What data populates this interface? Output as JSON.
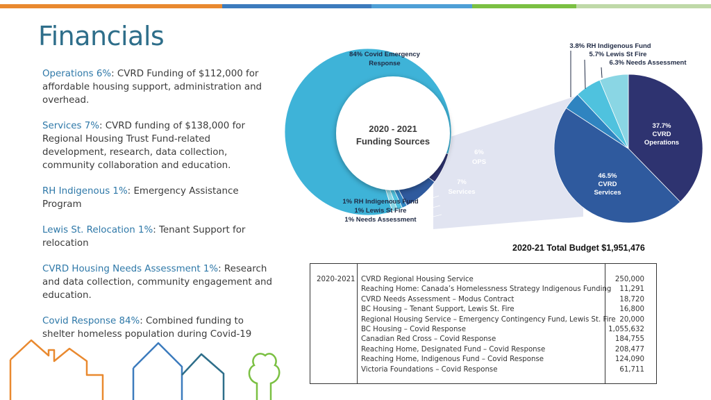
{
  "page": {
    "title": "Financials"
  },
  "descriptions": [
    {
      "label": "Operations 6%",
      "text": ":  CVRD Funding of $112,000 for affordable housing support, administration and overhead."
    },
    {
      "label": "Services 7%",
      "text": ":  CVRD funding of $138,000 for Regional Housing Trust Fund-related development, research, data collection, community collaboration and education."
    },
    {
      "label": "RH Indigenous 1%",
      "text": ":  Emergency Assistance Program"
    },
    {
      "label": "Lewis St. Relocation 1%",
      "text": ":  Tenant Support for relocation"
    },
    {
      "label": "CVRD Housing Needs Assessment 1%",
      "text": ": Research and data collection, community engagement and education."
    },
    {
      "label": "Covid Response 84%",
      "text": ":   Combined funding to shelter homeless population during Covid-19"
    }
  ],
  "colors": {
    "title": "#2e6e8a",
    "label": "#2e78a8",
    "covid": "#3eb3d8",
    "ops": "#2e3370",
    "services": "#2f5a9e",
    "small_a": "#2f84c0",
    "small_b": "#4fc2de",
    "small_c": "#8ad6e4",
    "bar_segments": [
      "#e9892f",
      "#3c7bbd",
      "#4e9fd6",
      "#7bc043",
      "#bfd9a8"
    ]
  },
  "chart_data": [
    {
      "type": "pie",
      "title": "2020 - 2021 Funding Sources",
      "slices": [
        {
          "label": "84% Covid Emergency Response",
          "value": 84
        },
        {
          "label": "6% OPS",
          "value": 6
        },
        {
          "label": "7% Services",
          "value": 7
        },
        {
          "label": "1% RH Indigenous Fund",
          "value": 1
        },
        {
          "label": "1% Lewis St Fire",
          "value": 1
        },
        {
          "label": "1% Needs Assessment",
          "value": 1
        }
      ],
      "labels": {
        "covid": [
          "84% Covid Emergency",
          "Response"
        ],
        "ops": [
          "6%",
          "OPS"
        ],
        "services": [
          "7%",
          "Services"
        ],
        "small": [
          "1% RH Indigenous Fund",
          "1% Lewis St Fire",
          "1% Needs Assessment"
        ],
        "center": [
          "2020 - 2021",
          "Funding Sources"
        ]
      }
    },
    {
      "type": "pie",
      "title": "",
      "slices": [
        {
          "label": "37.7% CVRD Operations",
          "value": 37.7
        },
        {
          "label": "46.5% CVRD Services",
          "value": 46.5
        },
        {
          "label": "3.8% RH Indigenous Fund",
          "value": 3.8
        },
        {
          "label": "5.7% Lewis St Fire",
          "value": 5.7
        },
        {
          "label": "6.3% Needs Assessment",
          "value": 6.3
        }
      ],
      "labels": {
        "ops": [
          "37.7%",
          "CVRD",
          "Operations"
        ],
        "services": [
          "46.5%",
          "CVRD",
          "Services"
        ],
        "callouts": [
          "3.8% RH Indigenous Fund",
          "5.7% Lewis St Fire",
          "6.3% Needs Assessment"
        ]
      }
    },
    {
      "type": "table",
      "title": "2020-21 Total Budget $1,951,476",
      "year": "2020-2021",
      "rows": [
        {
          "description": "CVRD Regional Housing Service",
          "amount": "250,000"
        },
        {
          "description": "Reaching Home: Canada’s Homelessness Strategy Indigenous Funding",
          "amount": "11,291"
        },
        {
          "description": "CVRD Needs Assessment – Modus Contract",
          "amount": "18,720"
        },
        {
          "description": "BC Housing – Tenant Support, Lewis St. Fire",
          "amount": "16,800"
        },
        {
          "description": "Regional Housing Service – Emergency Contingency Fund, Lewis St. Fire",
          "amount": "20,000"
        },
        {
          "description": "BC Housing – Covid Response",
          "amount": "1,055,632"
        },
        {
          "description": "Canadian Red Cross – Covid Response",
          "amount": "184,755"
        },
        {
          "description": "Reaching Home, Designated Fund – Covid Response",
          "amount": "208,477"
        },
        {
          "description": "Reaching Home, Indigenous Fund – Covid Response",
          "amount": "124,090"
        },
        {
          "description": "Victoria Foundations – Covid Response",
          "amount": "61,711"
        }
      ]
    }
  ]
}
